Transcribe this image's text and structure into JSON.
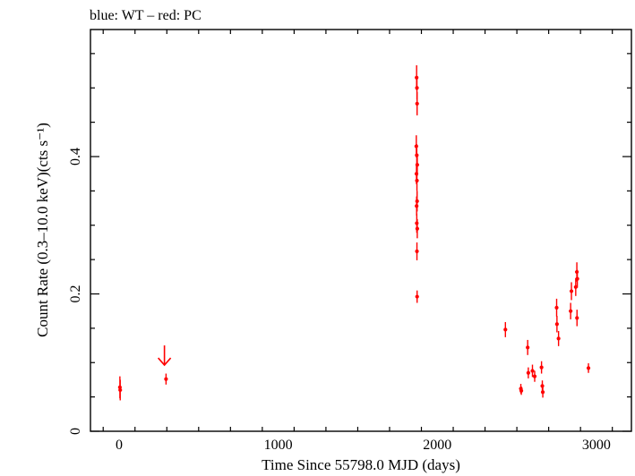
{
  "chart_data": {
    "type": "scatter",
    "legend_text": "blue: WT – red: PC",
    "xlabel": "Time Since 55798.0 MJD (days)",
    "ylabel": "Count Rate (0.3–10.0 keV)(cts s⁻¹)",
    "xlim": [
      -180,
      3220
    ],
    "ylim": [
      0,
      0.585
    ],
    "x_ticks": [
      0,
      1000,
      2000,
      3000
    ],
    "y_ticks": [
      0,
      0.2,
      0.4
    ],
    "x_tick_labels": [
      "0",
      "1000",
      "2000",
      "3000"
    ],
    "y_tick_labels": [
      "0",
      "0.2",
      "0.4"
    ],
    "series": [
      {
        "color": "#ff0000",
        "points": [
          {
            "x": 5,
            "y": 0.064,
            "yerr": 0.016
          },
          {
            "x": 7,
            "y": 0.06,
            "yerr": 0.015
          },
          {
            "x": 295,
            "y": 0.076,
            "yerr": 0.008
          },
          {
            "x": 1870,
            "y": 0.515,
            "yerr": 0.018
          },
          {
            "x": 1872,
            "y": 0.5,
            "yerr": 0.017
          },
          {
            "x": 1873,
            "y": 0.477,
            "yerr": 0.017
          },
          {
            "x": 1868,
            "y": 0.415,
            "yerr": 0.016
          },
          {
            "x": 1871,
            "y": 0.402,
            "yerr": 0.016
          },
          {
            "x": 1874,
            "y": 0.388,
            "yerr": 0.016
          },
          {
            "x": 1869,
            "y": 0.375,
            "yerr": 0.015
          },
          {
            "x": 1872,
            "y": 0.365,
            "yerr": 0.015
          },
          {
            "x": 1873,
            "y": 0.335,
            "yerr": 0.015
          },
          {
            "x": 1870,
            "y": 0.328,
            "yerr": 0.014
          },
          {
            "x": 1871,
            "y": 0.303,
            "yerr": 0.014
          },
          {
            "x": 1874,
            "y": 0.295,
            "yerr": 0.014
          },
          {
            "x": 1872,
            "y": 0.262,
            "yerr": 0.013
          },
          {
            "x": 1873,
            "y": 0.196,
            "yerr": 0.009
          },
          {
            "x": 2428,
            "y": 0.148,
            "yerr": 0.011
          },
          {
            "x": 2525,
            "y": 0.062,
            "yerr": 0.007
          },
          {
            "x": 2528,
            "y": 0.059,
            "yerr": 0.006
          },
          {
            "x": 2568,
            "y": 0.122,
            "yerr": 0.011
          },
          {
            "x": 2572,
            "y": 0.085,
            "yerr": 0.008
          },
          {
            "x": 2598,
            "y": 0.088,
            "yerr": 0.009
          },
          {
            "x": 2612,
            "y": 0.08,
            "yerr": 0.008
          },
          {
            "x": 2655,
            "y": 0.093,
            "yerr": 0.009
          },
          {
            "x": 2660,
            "y": 0.066,
            "yerr": 0.008
          },
          {
            "x": 2663,
            "y": 0.057,
            "yerr": 0.008
          },
          {
            "x": 2750,
            "y": 0.18,
            "yerr": 0.013
          },
          {
            "x": 2752,
            "y": 0.156,
            "yerr": 0.012
          },
          {
            "x": 2762,
            "y": 0.135,
            "yerr": 0.011
          },
          {
            "x": 2838,
            "y": 0.175,
            "yerr": 0.012
          },
          {
            "x": 2843,
            "y": 0.204,
            "yerr": 0.013
          },
          {
            "x": 2870,
            "y": 0.21,
            "yerr": 0.013
          },
          {
            "x": 2877,
            "y": 0.232,
            "yerr": 0.014
          },
          {
            "x": 2880,
            "y": 0.222,
            "yerr": 0.013
          },
          {
            "x": 2878,
            "y": 0.165,
            "yerr": 0.012
          },
          {
            "x": 2950,
            "y": 0.092,
            "yerr": 0.007
          }
        ],
        "upper_limits": [
          {
            "x": 285,
            "y": 0.125
          }
        ]
      }
    ]
  }
}
